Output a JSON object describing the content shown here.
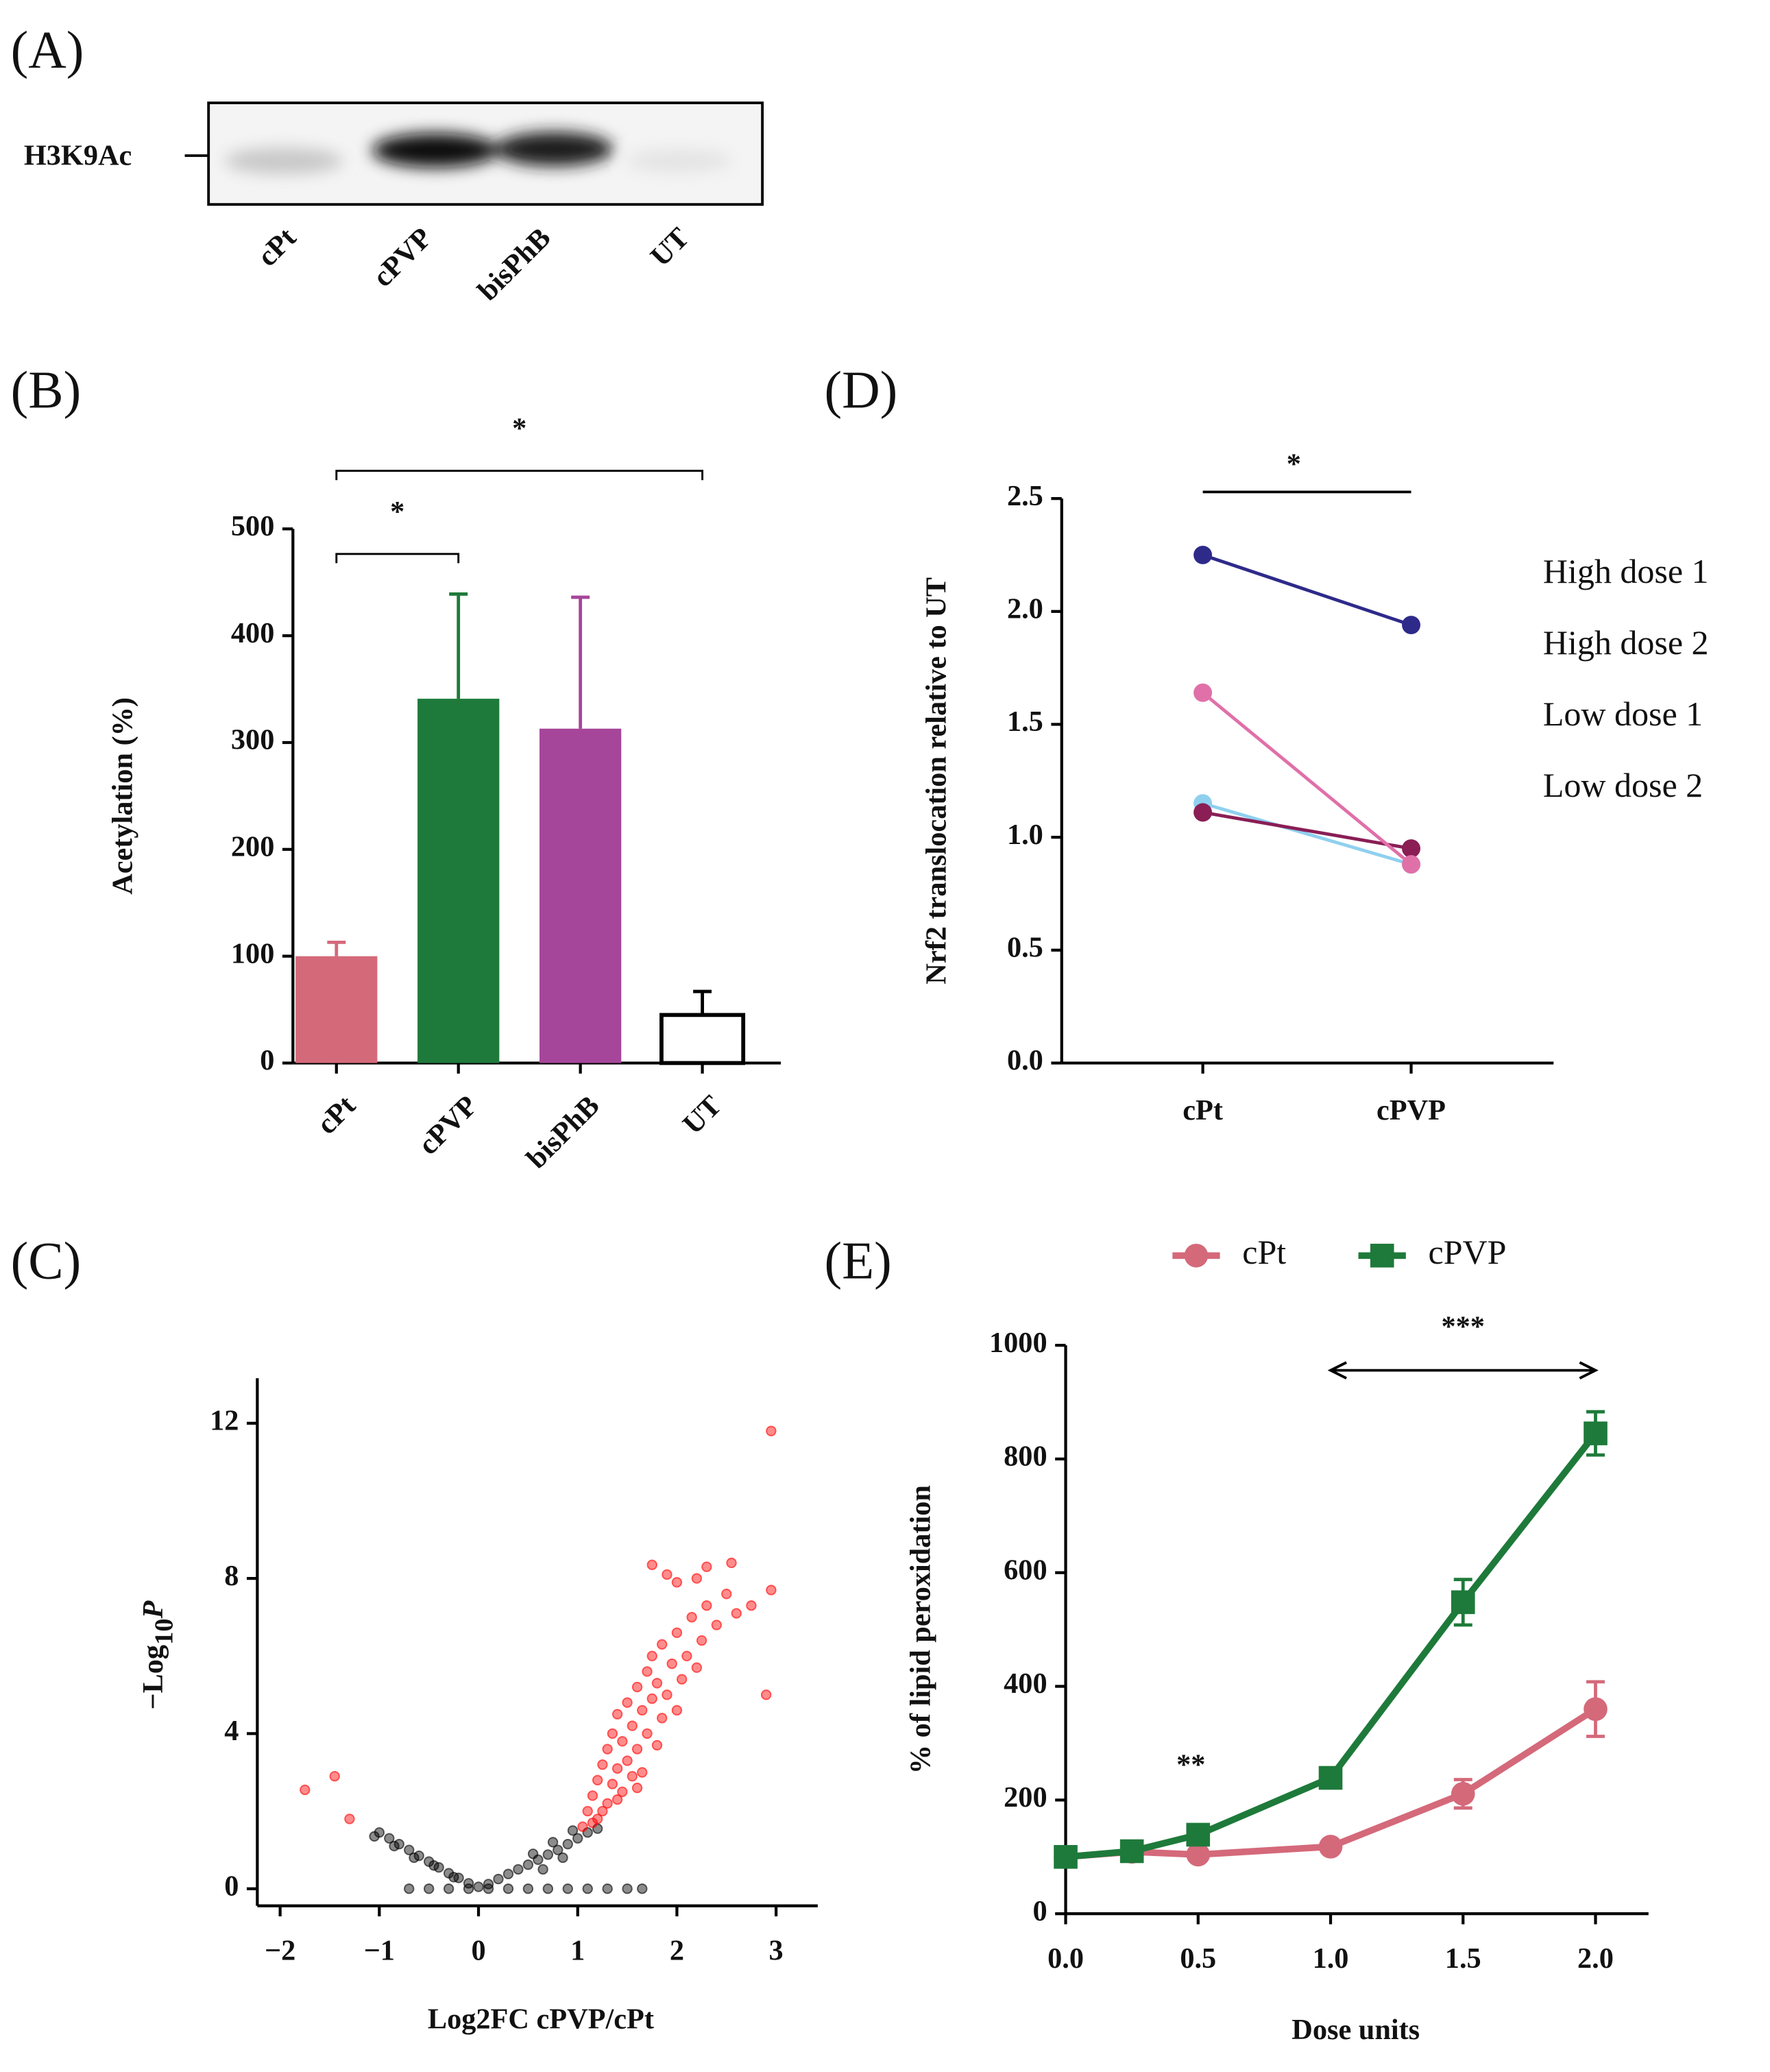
{
  "chart_data": [
    {
      "type": "blot",
      "panel": "(A)",
      "label": "H3K9Ac",
      "categories": [
        "cPt",
        "cPVP",
        "bisPhB",
        "UT"
      ]
    },
    {
      "type": "bar",
      "panel": "(B)",
      "ylabel": "Acetylation (%)",
      "categories": [
        "cPt",
        "cPVP",
        "bisPhB",
        "UT"
      ],
      "values": [
        100,
        341,
        313,
        45
      ],
      "errors": [
        13,
        98,
        123,
        22
      ],
      "colors": [
        "#d4697a",
        "#1e7a3a",
        "#a6469a",
        "#ffffff"
      ],
      "ylim": [
        0,
        500
      ],
      "yticks": [
        0,
        100,
        200,
        300,
        400,
        500
      ],
      "significance": [
        {
          "label": "*",
          "from": "cPt",
          "to": "cPVP"
        },
        {
          "label": "*",
          "from": "cPt",
          "to": "UT"
        }
      ]
    },
    {
      "type": "scatter",
      "panel": "(C)",
      "ylabel": {
        "main": "−Log",
        "sub": "10",
        "var": "P"
      },
      "xlabel": "Log2FC cPVP/cPt",
      "xlim": [
        -2.23,
        3.42
      ],
      "ylim": [
        -0.44,
        13.16
      ],
      "xticks": [
        {
          "value": -2,
          "label": "−2"
        },
        {
          "value": -1,
          "label": "−1"
        },
        0,
        1,
        2,
        3
      ],
      "yticks": [
        0,
        4,
        8,
        12
      ],
      "series": [
        {
          "color": "#000000",
          "x": [
            -1.0,
            -0.9,
            -0.8,
            -0.7,
            -0.6,
            -0.5,
            -0.4,
            -0.3,
            -0.2,
            -0.1,
            -1.05,
            -0.85,
            -0.65,
            -0.45,
            -0.25,
            0.1,
            0.2,
            0.3,
            0.4,
            0.5,
            0.6,
            0.7,
            0.8,
            0.9,
            1.0,
            1.1,
            1.2,
            0.55,
            0.75,
            0.95,
            0.65,
            0.85,
            -0.7,
            -0.5,
            -0.3,
            -0.1,
            0.1,
            0.3,
            0.5,
            0.7,
            0.9,
            1.1,
            1.3,
            1.5,
            1.65,
            0.0
          ],
          "values": [
            1.45,
            1.3,
            1.15,
            1.0,
            0.85,
            0.7,
            0.55,
            0.4,
            0.28,
            0.14,
            1.35,
            1.1,
            0.8,
            0.6,
            0.3,
            0.12,
            0.25,
            0.38,
            0.5,
            0.62,
            0.75,
            0.88,
            1.0,
            1.15,
            1.3,
            1.45,
            1.55,
            0.9,
            1.2,
            1.5,
            0.5,
            0.8,
            0,
            0,
            0,
            0,
            0,
            0,
            0,
            0,
            0,
            0,
            0,
            0,
            0,
            0.05
          ]
        },
        {
          "color": "#ff0000",
          "x": [
            1.05,
            1.1,
            1.15,
            1.2,
            1.2,
            1.25,
            1.3,
            1.3,
            1.35,
            1.35,
            1.4,
            1.4,
            1.45,
            1.45,
            1.5,
            1.5,
            1.55,
            1.55,
            1.6,
            1.6,
            1.65,
            1.65,
            1.7,
            1.7,
            1.75,
            1.75,
            1.8,
            1.8,
            1.85,
            1.85,
            1.9,
            1.95,
            2.0,
            2.0,
            2.05,
            2.1,
            2.15,
            2.2,
            2.25,
            2.3,
            2.4,
            2.5,
            2.6,
            2.75,
            2.9,
            2.95,
            2.55,
            2.3,
            1.75,
            1.9,
            2.95,
            -1.75,
            -1.45,
            -1.3,
            1.25,
            1.4,
            1.6,
            1.15,
            2.0,
            2.2
          ],
          "values": [
            1.6,
            2.0,
            2.4,
            1.8,
            2.8,
            3.2,
            2.2,
            3.6,
            2.7,
            4.0,
            3.1,
            4.5,
            2.5,
            3.8,
            3.3,
            4.8,
            2.9,
            4.2,
            3.6,
            5.2,
            4.6,
            3.0,
            4.0,
            5.6,
            4.9,
            6.0,
            3.7,
            5.3,
            4.4,
            6.3,
            5.0,
            5.8,
            4.6,
            6.6,
            5.4,
            6.0,
            7.0,
            5.7,
            6.4,
            7.3,
            6.8,
            7.6,
            7.1,
            7.3,
            5.0,
            7.7,
            8.4,
            8.3,
            8.35,
            8.1,
            11.8,
            2.55,
            2.9,
            1.8,
            2.0,
            2.3,
            2.6,
            1.7,
            7.9,
            8.0
          ]
        }
      ]
    },
    {
      "type": "line",
      "panel": "(D)",
      "ylabel": "Nrf2 translocation relative to UT",
      "categories": [
        "cPt",
        "cPVP"
      ],
      "ylim": [
        0,
        2.5
      ],
      "yticks": [
        {
          "value": 0,
          "label": "0.0"
        },
        0.5,
        {
          "value": 1,
          "label": "1.0"
        },
        1.5,
        {
          "value": 2,
          "label": "2.0"
        },
        2.5
      ],
      "series": [
        {
          "name": "High dose 1",
          "color": "#2e2a8a",
          "values": [
            2.25,
            1.94
          ]
        },
        {
          "name": "High dose 2",
          "color": "#8fd0ef",
          "values": [
            1.15,
            0.88
          ]
        },
        {
          "name": "Low dose 1",
          "color": "#8a1e55",
          "values": [
            1.11,
            0.95
          ]
        },
        {
          "name": "Low dose 2",
          "color": "#e070a8",
          "values": [
            1.64,
            0.88
          ]
        }
      ],
      "significance": [
        {
          "label": "*",
          "from": "cPt",
          "to": "cPVP"
        }
      ]
    },
    {
      "type": "line",
      "panel": "(E)",
      "ylabel": "% of lipid peroxidation",
      "xlabel": "Dose units",
      "x": [
        0,
        0.25,
        0.5,
        1,
        1.5,
        2
      ],
      "xlim": [
        0,
        2.2
      ],
      "ylim": [
        0,
        1000
      ],
      "xticks": [
        {
          "value": 0,
          "label": "0.0"
        },
        0.5,
        {
          "value": 1,
          "label": "1.0"
        },
        1.5,
        {
          "value": 2,
          "label": "2.0"
        }
      ],
      "yticks": [
        0,
        200,
        400,
        600,
        800,
        1000
      ],
      "series": [
        {
          "name": "cPt",
          "color": "#d4697a",
          "marker": "circle",
          "values": [
            100,
            109,
            104,
            118,
            211,
            360
          ],
          "errors": [
            0,
            0,
            0,
            0,
            25,
            48
          ]
        },
        {
          "name": "cPVP",
          "color": "#1e7a3a",
          "marker": "square",
          "values": [
            100,
            110,
            139,
            239,
            548,
            845
          ],
          "errors": [
            0,
            0,
            0,
            0,
            40,
            38
          ]
        }
      ],
      "annotations": [
        "**",
        "***"
      ]
    }
  ]
}
